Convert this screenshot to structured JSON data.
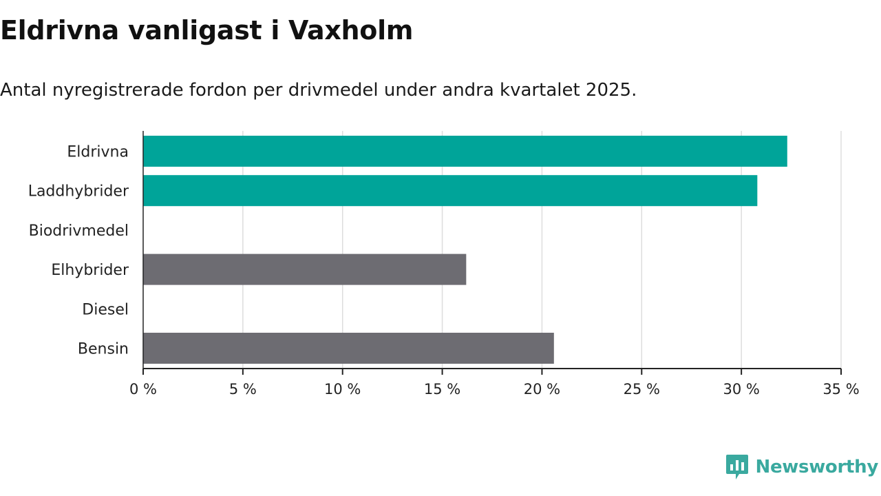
{
  "chart_data": {
    "type": "bar",
    "orientation": "horizontal",
    "title": "Eldrivna vanligast i Vaxholm",
    "subtitle": "Antal nyregistrerade fordon per drivmedel under andra kvartalet 2025.",
    "categories": [
      "Eldrivna",
      "Laddhybrider",
      "Biodrivmedel",
      "Elhybrider",
      "Diesel",
      "Bensin"
    ],
    "values": [
      32.3,
      30.8,
      0,
      16.2,
      0,
      20.6
    ],
    "bar_colors": [
      "#00a499",
      "#00a499",
      "#00a499",
      "#6d6c72",
      "#6d6c72",
      "#6d6c72"
    ],
    "xlim": [
      0,
      35
    ],
    "xticks": [
      0,
      5,
      10,
      15,
      20,
      25,
      30,
      35
    ],
    "xtick_labels": [
      "0 %",
      "5 %",
      "10 %",
      "15 %",
      "20 %",
      "25 %",
      "30 %",
      "35 %"
    ],
    "grid": true
  },
  "brand": {
    "name": "Newsworthy",
    "color": "#3aa99f",
    "icon": "newsworthy-logo-icon"
  }
}
